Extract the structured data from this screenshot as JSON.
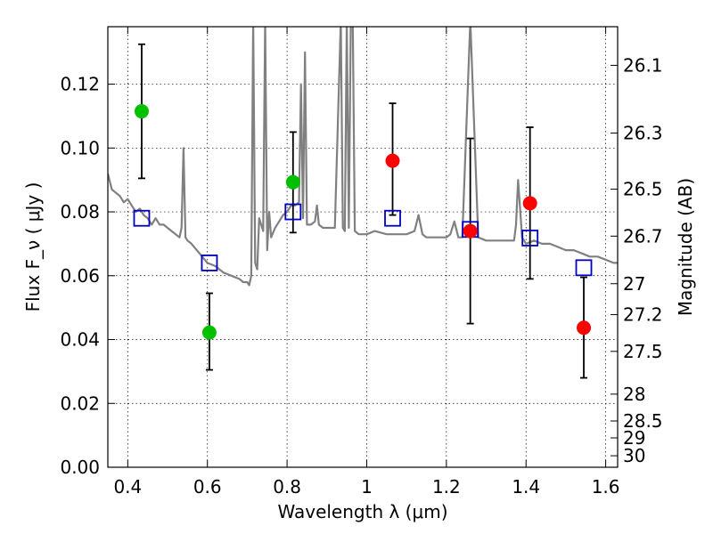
{
  "chart_data": {
    "type": "scatter",
    "xlabel": "Wavelength  λ (μm)",
    "ylabel_left": "Flux  F_ν  ( μJy )",
    "ylabel_right": "Magnitude (AB)",
    "xlim": [
      0.35,
      1.63
    ],
    "ylim": [
      0.0,
      0.138
    ],
    "grid": true,
    "x_ticks": [
      0.4,
      0.6,
      0.8,
      1.0,
      1.2,
      1.4,
      1.6
    ],
    "x_tick_labels": [
      "0.4",
      "0.6",
      "0.8",
      "1",
      "1.2",
      "1.4",
      "1.6"
    ],
    "y_ticks": [
      0.0,
      0.02,
      0.04,
      0.06,
      0.08,
      0.1,
      0.12
    ],
    "y_tick_labels": [
      "0.00",
      "0.02",
      "0.04",
      "0.06",
      "0.08",
      "0.10",
      "0.12"
    ],
    "right_ticks": [
      {
        "flux": 0.1259,
        "label": "26.1"
      },
      {
        "flux": 0.1047,
        "label": "26.3"
      },
      {
        "flux": 0.0871,
        "label": "26.5"
      },
      {
        "flux": 0.0724,
        "label": "26.7"
      },
      {
        "flux": 0.0575,
        "label": "27"
      },
      {
        "flux": 0.0478,
        "label": "27.2"
      },
      {
        "flux": 0.0363,
        "label": "27.5"
      },
      {
        "flux": 0.0229,
        "label": "28"
      },
      {
        "flux": 0.0145,
        "label": "28.5"
      },
      {
        "flux": 0.0092,
        "label": "29"
      },
      {
        "flux": 0.0036,
        "label": "30"
      }
    ],
    "observed_green": {
      "color": "#00c000",
      "points": [
        {
          "x": 0.435,
          "y": 0.1115,
          "yerr_low": 0.0905,
          "yerr_high": 0.1325
        },
        {
          "x": 0.605,
          "y": 0.0422,
          "yerr_low": 0.0305,
          "yerr_high": 0.0545
        },
        {
          "x": 0.815,
          "y": 0.0893,
          "yerr_low": 0.0735,
          "yerr_high": 0.105
        }
      ]
    },
    "observed_red": {
      "color": "#ff0000",
      "points": [
        {
          "x": 1.065,
          "y": 0.096,
          "yerr_low": 0.079,
          "yerr_high": 0.114
        },
        {
          "x": 1.26,
          "y": 0.074,
          "yerr_low": 0.045,
          "yerr_high": 0.103
        },
        {
          "x": 1.41,
          "y": 0.0827,
          "yerr_low": 0.059,
          "yerr_high": 0.1065
        },
        {
          "x": 1.545,
          "y": 0.0437,
          "yerr_low": 0.028,
          "yerr_high": 0.0595
        }
      ]
    },
    "model_photometry": {
      "color": "#0000c0",
      "points": [
        {
          "x": 0.435,
          "y": 0.078
        },
        {
          "x": 0.605,
          "y": 0.064
        },
        {
          "x": 0.815,
          "y": 0.08
        },
        {
          "x": 1.065,
          "y": 0.078
        },
        {
          "x": 1.26,
          "y": 0.0745
        },
        {
          "x": 1.41,
          "y": 0.0718
        },
        {
          "x": 1.545,
          "y": 0.0625
        }
      ]
    },
    "sed_spectrum": {
      "color": "#808080",
      "x": [
        0.35,
        0.36,
        0.37,
        0.38,
        0.39,
        0.4,
        0.41,
        0.42,
        0.43,
        0.44,
        0.45,
        0.46,
        0.47,
        0.48,
        0.49,
        0.5,
        0.51,
        0.52,
        0.53,
        0.535,
        0.54,
        0.545,
        0.55,
        0.56,
        0.58,
        0.6,
        0.62,
        0.64,
        0.66,
        0.68,
        0.69,
        0.7,
        0.705,
        0.71,
        0.715,
        0.72,
        0.725,
        0.73,
        0.74,
        0.745,
        0.75,
        0.755,
        0.76,
        0.77,
        0.78,
        0.79,
        0.8,
        0.81,
        0.82,
        0.83,
        0.835,
        0.84,
        0.845,
        0.85,
        0.86,
        0.87,
        0.875,
        0.88,
        0.89,
        0.9,
        0.92,
        0.935,
        0.94,
        0.945,
        0.95,
        0.955,
        0.96,
        0.965,
        0.97,
        0.98,
        1.0,
        1.02,
        1.05,
        1.08,
        1.1,
        1.12,
        1.13,
        1.14,
        1.15,
        1.16,
        1.18,
        1.2,
        1.21,
        1.22,
        1.23,
        1.24,
        1.26,
        1.28,
        1.3,
        1.32,
        1.34,
        1.36,
        1.37,
        1.375,
        1.38,
        1.39,
        1.4,
        1.42,
        1.44,
        1.46,
        1.48,
        1.5,
        1.52,
        1.54,
        1.56,
        1.58,
        1.6,
        1.62,
        1.63
      ],
      "y": [
        0.092,
        0.087,
        0.086,
        0.085,
        0.083,
        0.084,
        0.082,
        0.08,
        0.081,
        0.079,
        0.078,
        0.076,
        0.078,
        0.076,
        0.076,
        0.075,
        0.074,
        0.073,
        0.072,
        0.075,
        0.1,
        0.072,
        0.071,
        0.07,
        0.067,
        0.064,
        0.063,
        0.061,
        0.06,
        0.059,
        0.058,
        0.058,
        0.057,
        0.06,
        0.14,
        0.064,
        0.062,
        0.078,
        0.074,
        0.14,
        0.068,
        0.08,
        0.072,
        0.075,
        0.077,
        0.079,
        0.08,
        0.082,
        0.082,
        0.083,
        0.12,
        0.078,
        0.13,
        0.076,
        0.076,
        0.077,
        0.082,
        0.076,
        0.075,
        0.075,
        0.075,
        0.14,
        0.075,
        0.074,
        0.14,
        0.075,
        0.14,
        0.14,
        0.074,
        0.073,
        0.073,
        0.074,
        0.073,
        0.073,
        0.073,
        0.074,
        0.079,
        0.073,
        0.072,
        0.072,
        0.072,
        0.072,
        0.073,
        0.077,
        0.072,
        0.072,
        0.14,
        0.072,
        0.071,
        0.071,
        0.071,
        0.071,
        0.071,
        0.076,
        0.09,
        0.072,
        0.07,
        0.071,
        0.07,
        0.07,
        0.069,
        0.068,
        0.068,
        0.067,
        0.066,
        0.066,
        0.065,
        0.064,
        0.064
      ]
    }
  }
}
